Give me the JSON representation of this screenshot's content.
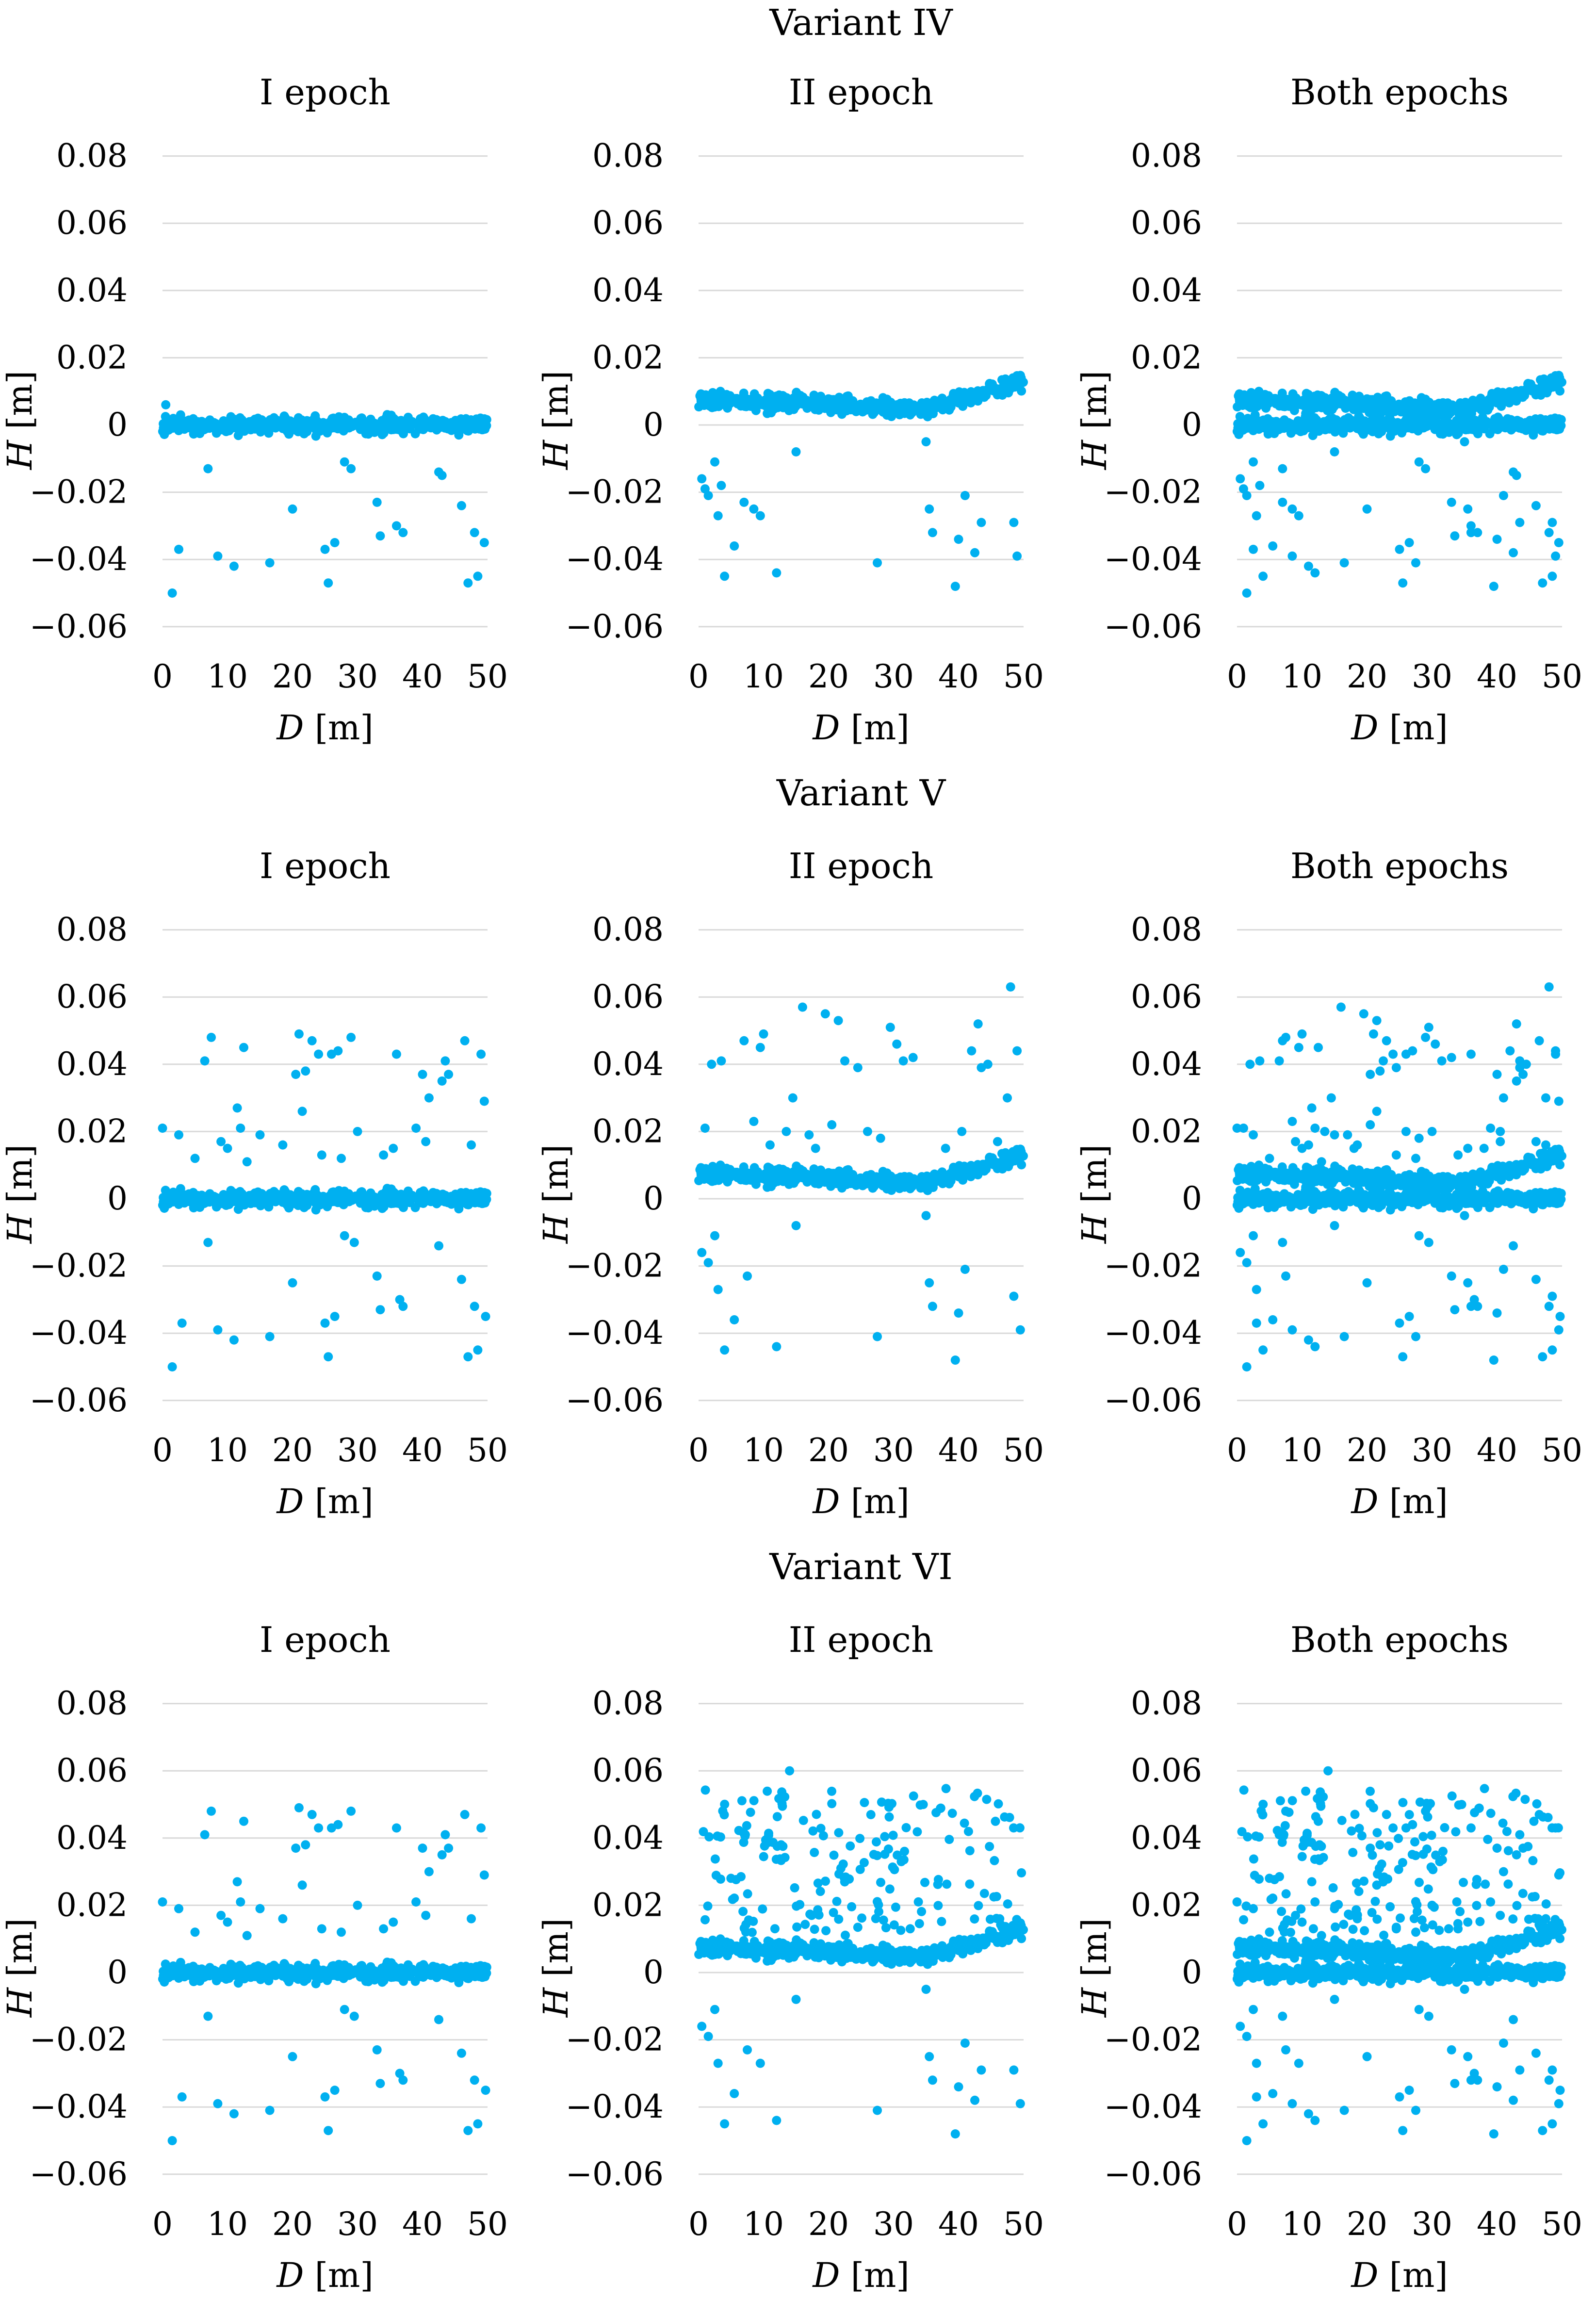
{
  "figure": {
    "variants": [
      {
        "title": "Variant IV"
      },
      {
        "title": "Variant V"
      },
      {
        "title": "Variant VI"
      }
    ],
    "panel_titles": [
      "I epoch",
      "II epoch",
      "Both epochs"
    ],
    "xlabel_var": "D",
    "ylabel_var": "H",
    "unit": "[m]",
    "x_ticks": [
      "0",
      "10",
      "20",
      "30",
      "40",
      "50"
    ],
    "y_ticks": [
      "0.08",
      "0.06",
      "0.04",
      "0.02",
      "0",
      "-0.02",
      "-0.04",
      "-0.06"
    ],
    "point_color": "#00B0F0",
    "grid_color": "#D9D9D9"
  },
  "chart_data": [
    {
      "type": "scatter",
      "variant": "Variant IV",
      "title": "I epoch",
      "xlabel": "D [m]",
      "ylabel": "H [m]",
      "xlim": [
        0,
        50
      ],
      "ylim": [
        -0.06,
        0.08
      ],
      "grid": true,
      "series": [
        {
          "name": "I epoch",
          "band_center": 0.0,
          "band_halfwidth": 0.004,
          "outliers": [
            [
              0.5,
              0.006
            ],
            [
              1.5,
              -0.05
            ],
            [
              2.5,
              -0.037
            ],
            [
              7,
              -0.013
            ],
            [
              8.5,
              -0.039
            ],
            [
              11,
              -0.042
            ],
            [
              16.5,
              -0.041
            ],
            [
              20,
              -0.025
            ],
            [
              25,
              -0.037
            ],
            [
              25.5,
              -0.047
            ],
            [
              26.5,
              -0.035
            ],
            [
              28,
              -0.011
            ],
            [
              29,
              -0.013
            ],
            [
              33,
              -0.023
            ],
            [
              33.5,
              -0.033
            ],
            [
              36,
              -0.03
            ],
            [
              37,
              -0.032
            ],
            [
              42.5,
              -0.014
            ],
            [
              43,
              -0.015
            ],
            [
              46,
              -0.024
            ],
            [
              47,
              -0.047
            ],
            [
              48,
              -0.032
            ],
            [
              48.5,
              -0.045
            ],
            [
              49.5,
              -0.035
            ]
          ]
        }
      ]
    },
    {
      "type": "scatter",
      "variant": "Variant IV",
      "title": "II epoch",
      "xlabel": "D [m]",
      "ylabel": "H [m]",
      "xlim": [
        0,
        50
      ],
      "ylim": [
        -0.06,
        0.08
      ],
      "grid": true,
      "series": [
        {
          "name": "II epoch",
          "band_center": "0.007 decreasing to 0.005 near D=35, rising to 0.013 at D=50",
          "band_halfwidth": 0.004,
          "outliers": [
            [
              0.5,
              -0.016
            ],
            [
              1,
              -0.019
            ],
            [
              1.5,
              -0.021
            ],
            [
              2.5,
              -0.011
            ],
            [
              3,
              -0.027
            ],
            [
              3.5,
              -0.018
            ],
            [
              4,
              -0.045
            ],
            [
              5.5,
              -0.036
            ],
            [
              7,
              -0.023
            ],
            [
              8.5,
              -0.025
            ],
            [
              9.5,
              -0.027
            ],
            [
              12,
              -0.044
            ],
            [
              15,
              -0.008
            ],
            [
              27.5,
              -0.041
            ],
            [
              35,
              -0.005
            ],
            [
              35.5,
              -0.025
            ],
            [
              36,
              -0.032
            ],
            [
              39.5,
              -0.048
            ],
            [
              40,
              -0.034
            ],
            [
              41,
              -0.021
            ],
            [
              42.5,
              -0.038
            ],
            [
              43.5,
              -0.029
            ],
            [
              48.5,
              -0.029
            ],
            [
              49,
              -0.039
            ]
          ]
        }
      ]
    },
    {
      "type": "scatter",
      "variant": "Variant IV",
      "title": "Both epochs",
      "xlabel": "D [m]",
      "ylabel": "H [m]",
      "xlim": [
        0,
        50
      ],
      "ylim": [
        -0.06,
        0.08
      ],
      "grid": true,
      "series": [
        {
          "name": "Both epochs",
          "combined_of": [
            "I epoch",
            "II epoch"
          ]
        }
      ]
    },
    {
      "type": "scatter",
      "variant": "Variant V",
      "title": "I epoch",
      "xlabel": "D [m]",
      "ylabel": "H [m]",
      "xlim": [
        0,
        50
      ],
      "ylim": [
        -0.06,
        0.08
      ],
      "grid": true,
      "series": [
        {
          "name": "I epoch",
          "band_center": 0.0,
          "band_halfwidth": 0.004,
          "outliers": [
            [
              0,
              0.021
            ],
            [
              1.5,
              -0.05
            ],
            [
              2.5,
              0.019
            ],
            [
              3,
              -0.037
            ],
            [
              5,
              0.012
            ],
            [
              6.5,
              0.041
            ],
            [
              7,
              -0.013
            ],
            [
              7.5,
              0.048
            ],
            [
              8.5,
              -0.039
            ],
            [
              9,
              0.017
            ],
            [
              10,
              0.015
            ],
            [
              11,
              -0.042
            ],
            [
              11.5,
              0.027
            ],
            [
              12,
              0.021
            ],
            [
              12.5,
              0.045
            ],
            [
              13,
              0.011
            ],
            [
              15,
              0.019
            ],
            [
              16.5,
              -0.041
            ],
            [
              18.5,
              0.016
            ],
            [
              20,
              -0.025
            ],
            [
              20.5,
              0.037
            ],
            [
              21,
              0.049
            ],
            [
              21.5,
              0.026
            ],
            [
              22,
              0.038
            ],
            [
              23,
              0.047
            ],
            [
              24,
              0.043
            ],
            [
              24.5,
              0.013
            ],
            [
              25,
              -0.037
            ],
            [
              25.5,
              -0.047
            ],
            [
              26,
              0.043
            ],
            [
              26.5,
              -0.035
            ],
            [
              27,
              0.044
            ],
            [
              27.5,
              0.012
            ],
            [
              28,
              -0.011
            ],
            [
              29,
              0.048
            ],
            [
              29.5,
              -0.013
            ],
            [
              30,
              0.02
            ],
            [
              33,
              -0.023
            ],
            [
              33.5,
              -0.033
            ],
            [
              34,
              0.013
            ],
            [
              35.5,
              0.015
            ],
            [
              36,
              0.043
            ],
            [
              36.5,
              -0.03
            ],
            [
              37,
              -0.032
            ],
            [
              39,
              0.021
            ],
            [
              40,
              0.037
            ],
            [
              40.5,
              0.017
            ],
            [
              41,
              0.03
            ],
            [
              42.5,
              -0.014
            ],
            [
              43,
              0.035
            ],
            [
              43.5,
              0.041
            ],
            [
              44,
              0.037
            ],
            [
              46,
              -0.024
            ],
            [
              46.5,
              0.047
            ],
            [
              47,
              -0.047
            ],
            [
              47.5,
              0.016
            ],
            [
              48,
              -0.032
            ],
            [
              48.5,
              -0.045
            ],
            [
              49,
              0.043
            ],
            [
              49.5,
              0.029
            ],
            [
              49.7,
              -0.035
            ]
          ]
        }
      ]
    },
    {
      "type": "scatter",
      "variant": "Variant V",
      "title": "II epoch",
      "xlabel": "D [m]",
      "ylabel": "H [m]",
      "xlim": [
        0,
        50
      ],
      "ylim": [
        -0.06,
        0.08
      ],
      "grid": true,
      "series": [
        {
          "name": "II epoch",
          "band_center": "0.007 decreasing to 0.005 near D=35, rising to 0.013 at D=50",
          "band_halfwidth": 0.004,
          "outliers": [
            [
              0.5,
              -0.016
            ],
            [
              1,
              0.021
            ],
            [
              1.5,
              -0.019
            ],
            [
              2,
              0.04
            ],
            [
              2.5,
              -0.011
            ],
            [
              3,
              -0.027
            ],
            [
              3.5,
              0.041
            ],
            [
              4,
              -0.045
            ],
            [
              5.5,
              -0.036
            ],
            [
              7,
              0.047
            ],
            [
              7.5,
              -0.023
            ],
            [
              8.5,
              0.023
            ],
            [
              9.5,
              0.045
            ],
            [
              10,
              0.049
            ],
            [
              11,
              0.016
            ],
            [
              12,
              -0.044
            ],
            [
              13.5,
              0.02
            ],
            [
              14.5,
              0.03
            ],
            [
              15,
              -0.008
            ],
            [
              16,
              0.057
            ],
            [
              17,
              0.019
            ],
            [
              18,
              0.015
            ],
            [
              19.5,
              0.055
            ],
            [
              20.5,
              0.022
            ],
            [
              21.5,
              0.053
            ],
            [
              22.5,
              0.041
            ],
            [
              24.5,
              0.039
            ],
            [
              26,
              0.02
            ],
            [
              27.5,
              -0.041
            ],
            [
              28,
              0.018
            ],
            [
              29.5,
              0.051
            ],
            [
              30.5,
              0.046
            ],
            [
              31.5,
              0.041
            ],
            [
              33,
              0.042
            ],
            [
              35,
              -0.005
            ],
            [
              35.5,
              -0.025
            ],
            [
              36,
              -0.032
            ],
            [
              38,
              0.015
            ],
            [
              39.5,
              -0.048
            ],
            [
              40,
              -0.034
            ],
            [
              40.5,
              0.02
            ],
            [
              41,
              -0.021
            ],
            [
              42,
              0.044
            ],
            [
              43,
              0.052
            ],
            [
              43.5,
              0.039
            ],
            [
              44.5,
              0.04
            ],
            [
              46,
              0.017
            ],
            [
              47.5,
              0.03
            ],
            [
              48,
              0.063
            ],
            [
              48.5,
              -0.029
            ],
            [
              49,
              0.044
            ],
            [
              49.5,
              -0.039
            ]
          ]
        }
      ]
    },
    {
      "type": "scatter",
      "variant": "Variant V",
      "title": "Both epochs",
      "xlabel": "D [m]",
      "ylabel": "H [m]",
      "xlim": [
        0,
        50
      ],
      "ylim": [
        -0.06,
        0.08
      ],
      "grid": true,
      "series": [
        {
          "name": "Both epochs",
          "combined_of": [
            "I epoch",
            "II epoch"
          ]
        }
      ]
    },
    {
      "type": "scatter",
      "variant": "Variant VI",
      "title": "I epoch",
      "xlabel": "D [m]",
      "ylabel": "H [m]",
      "xlim": [
        0,
        50
      ],
      "ylim": [
        -0.06,
        0.08
      ],
      "grid": true,
      "series": [
        {
          "name": "I epoch",
          "same_as": "Variant V I epoch"
        }
      ]
    },
    {
      "type": "scatter",
      "variant": "Variant VI",
      "title": "II epoch",
      "xlabel": "D [m]",
      "ylabel": "H [m]",
      "xlim": [
        0,
        50
      ],
      "ylim": [
        -0.06,
        0.08
      ],
      "grid": true,
      "series": [
        {
          "name": "II epoch",
          "band_center": "0.007 decreasing to 0.005 near D=35, rising to 0.013 at D=50",
          "band_halfwidth": 0.004,
          "scattered_positive_range": [
            0.01,
            0.06
          ],
          "scattered_positive_count": 180,
          "outliers": [
            [
              0.5,
              -0.016
            ],
            [
              1.5,
              -0.019
            ],
            [
              2.5,
              -0.011
            ],
            [
              3,
              -0.027
            ],
            [
              4,
              -0.045
            ],
            [
              5.5,
              -0.036
            ],
            [
              7.5,
              -0.023
            ],
            [
              9.5,
              -0.027
            ],
            [
              12,
              -0.044
            ],
            [
              14,
              0.06
            ],
            [
              15,
              -0.008
            ],
            [
              27.5,
              -0.041
            ],
            [
              35,
              -0.005
            ],
            [
              35.5,
              -0.025
            ],
            [
              36,
              -0.032
            ],
            [
              39.5,
              -0.048
            ],
            [
              40,
              -0.034
            ],
            [
              41,
              -0.021
            ],
            [
              42.5,
              -0.038
            ],
            [
              43.5,
              -0.029
            ],
            [
              48.5,
              -0.029
            ],
            [
              49.5,
              -0.039
            ]
          ]
        }
      ]
    },
    {
      "type": "scatter",
      "variant": "Variant VI",
      "title": "Both epochs",
      "xlabel": "D [m]",
      "ylabel": "H [m]",
      "xlim": [
        0,
        50
      ],
      "ylim": [
        -0.06,
        0.08
      ],
      "grid": true,
      "series": [
        {
          "name": "Both epochs",
          "combined_of": [
            "I epoch",
            "II epoch"
          ]
        }
      ]
    }
  ]
}
